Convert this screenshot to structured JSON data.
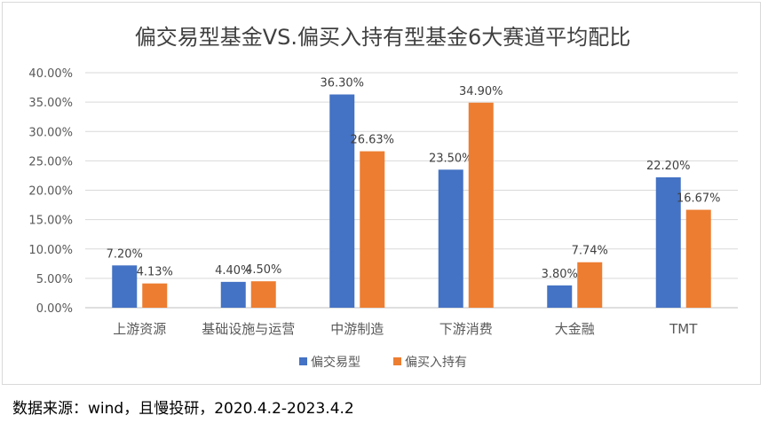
{
  "chart_data": {
    "type": "bar",
    "title": "偏交易型基金VS.偏买入持有型基金6大赛道平均配比",
    "categories": [
      "上游资源",
      "基础设施与运营",
      "中游制造",
      "下游消费",
      "大金融",
      "TMT"
    ],
    "series": [
      {
        "name": "偏交易型",
        "color": "#4472c4",
        "values": [
          7.2,
          4.4,
          36.3,
          23.5,
          3.8,
          22.2
        ],
        "labels": [
          "7.20%",
          "4.40%",
          "36.30%",
          "23.50%",
          "3.80%",
          "22.20%"
        ]
      },
      {
        "name": "偏买入持有",
        "color": "#ed7d31",
        "values": [
          4.13,
          4.5,
          26.63,
          34.9,
          7.74,
          16.67
        ],
        "labels": [
          "4.13%",
          "4.50%",
          "26.63%",
          "34.90%",
          "7.74%",
          "16.67%"
        ]
      }
    ],
    "ylim": [
      0,
      40
    ],
    "yticks": [
      "0.00%",
      "5.00%",
      "10.00%",
      "15.00%",
      "20.00%",
      "25.00%",
      "30.00%",
      "35.00%",
      "40.00%"
    ],
    "grid": true,
    "legend_position": "bottom"
  },
  "source_note": "数据来源：wind，且慢投研，2020.4.2-2023.4.2"
}
